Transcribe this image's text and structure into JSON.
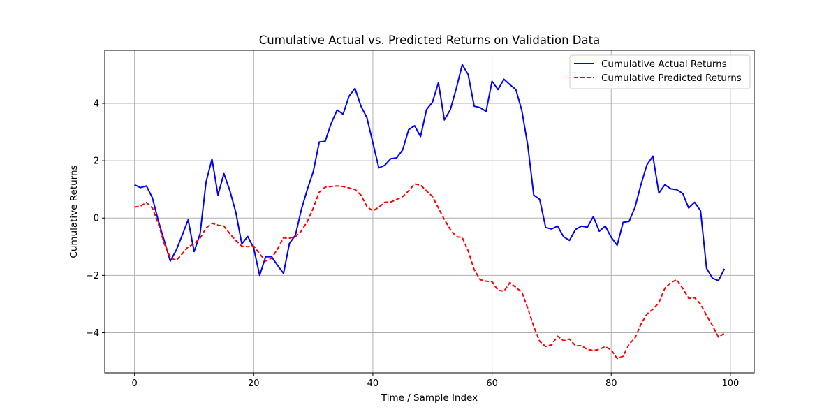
{
  "chart_data": {
    "type": "line",
    "title": "Cumulative Actual vs. Predicted Returns on Validation Data",
    "xlabel": "Time / Sample Index",
    "ylabel": "Cumulative Returns",
    "xlim": [
      -5,
      104
    ],
    "ylim": [
      -5.4,
      5.85
    ],
    "xticks": [
      0,
      20,
      40,
      60,
      80,
      100
    ],
    "yticks": [
      -4,
      -2,
      0,
      2,
      4
    ],
    "xtick_labels": [
      "0",
      "20",
      "40",
      "60",
      "80",
      "100"
    ],
    "ytick_labels": [
      "−4",
      "−2",
      "0",
      "2",
      "4"
    ],
    "grid": true,
    "legend_position": "top-right",
    "x": [
      0,
      1,
      2,
      3,
      4,
      5,
      6,
      7,
      8,
      9,
      10,
      11,
      12,
      13,
      14,
      15,
      16,
      17,
      18,
      19,
      20,
      21,
      22,
      23,
      24,
      25,
      26,
      27,
      28,
      29,
      30,
      31,
      32,
      33,
      34,
      35,
      36,
      37,
      38,
      39,
      40,
      41,
      42,
      43,
      44,
      45,
      46,
      47,
      48,
      49,
      50,
      51,
      52,
      53,
      54,
      55,
      56,
      57,
      58,
      59,
      60,
      61,
      62,
      63,
      64,
      65,
      66,
      67,
      68,
      69,
      70,
      71,
      72,
      73,
      74,
      75,
      76,
      77,
      78,
      79,
      80,
      81,
      82,
      83,
      84,
      85,
      86,
      87,
      88,
      89,
      90,
      91,
      92,
      93,
      94,
      95,
      96,
      97,
      98,
      99
    ],
    "series": [
      {
        "name": "Cumulative Actual Returns",
        "color": "#0000ff",
        "style": "solid",
        "values": [
          1.16,
          1.06,
          1.12,
          0.7,
          -0.1,
          -0.8,
          -1.5,
          -1.12,
          -0.6,
          -0.06,
          -1.17,
          -0.55,
          1.25,
          2.06,
          0.8,
          1.55,
          0.95,
          0.2,
          -0.9,
          -0.64,
          -1.05,
          -2.0,
          -1.35,
          -1.35,
          -1.65,
          -1.93,
          -0.88,
          -0.6,
          0.3,
          1.0,
          1.62,
          2.65,
          2.68,
          3.3,
          3.77,
          3.62,
          4.25,
          4.52,
          3.9,
          3.5,
          2.62,
          1.75,
          1.84,
          2.07,
          2.1,
          2.38,
          3.08,
          3.22,
          2.84,
          3.78,
          4.04,
          4.72,
          3.42,
          3.78,
          4.52,
          5.35,
          5.0,
          3.9,
          3.85,
          3.72,
          4.77,
          4.48,
          4.84,
          4.65,
          4.48,
          3.75,
          2.53,
          0.8,
          0.65,
          -0.33,
          -0.38,
          -0.28,
          -0.65,
          -0.78,
          -0.4,
          -0.28,
          -0.32,
          0.05,
          -0.46,
          -0.28,
          -0.67,
          -0.95,
          -0.15,
          -0.12,
          0.38,
          1.17,
          1.86,
          2.16,
          0.87,
          1.16,
          1.02,
          0.99,
          0.86,
          0.35,
          0.55,
          0.25,
          -1.75,
          -2.1,
          -2.18,
          -1.77
        ]
      },
      {
        "name": "Cumulative Predicted Returns",
        "color": "#ff0000",
        "style": "dashed",
        "values": [
          0.38,
          0.42,
          0.54,
          0.35,
          -0.2,
          -0.9,
          -1.38,
          -1.48,
          -1.25,
          -1.0,
          -0.9,
          -0.7,
          -0.35,
          -0.18,
          -0.25,
          -0.28,
          -0.55,
          -0.78,
          -0.98,
          -1.0,
          -0.98,
          -1.25,
          -1.5,
          -1.4,
          -1.08,
          -0.69,
          -0.7,
          -0.65,
          -0.45,
          -0.12,
          0.35,
          0.9,
          1.08,
          1.1,
          1.12,
          1.1,
          1.05,
          1.0,
          0.8,
          0.4,
          0.25,
          0.38,
          0.55,
          0.56,
          0.65,
          0.75,
          0.95,
          1.19,
          1.15,
          0.95,
          0.75,
          0.35,
          -0.05,
          -0.4,
          -0.65,
          -0.68,
          -1.15,
          -1.8,
          -2.15,
          -2.2,
          -2.22,
          -2.52,
          -2.55,
          -2.25,
          -2.42,
          -2.58,
          -3.15,
          -3.78,
          -4.3,
          -4.48,
          -4.42,
          -4.12,
          -4.28,
          -4.22,
          -4.45,
          -4.45,
          -4.58,
          -4.62,
          -4.58,
          -4.48,
          -4.6,
          -4.9,
          -4.82,
          -4.4,
          -4.18,
          -3.7,
          -3.35,
          -3.18,
          -2.95,
          -2.45,
          -2.25,
          -2.15,
          -2.45,
          -2.8,
          -2.78,
          -3.0,
          -3.4,
          -3.75,
          -4.15,
          -4.02
        ]
      }
    ]
  }
}
